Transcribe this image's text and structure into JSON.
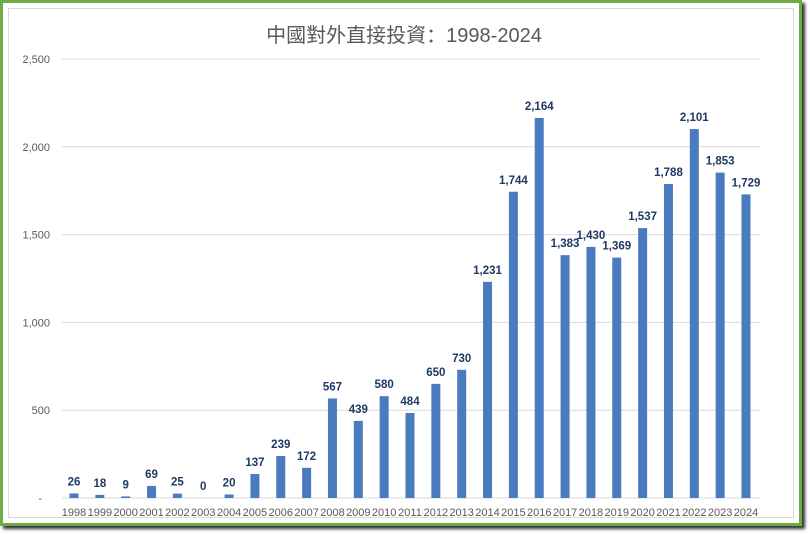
{
  "chart_data": {
    "type": "bar",
    "title": "中國對外直接投資：1998-2024",
    "xlabel": "",
    "ylabel": "",
    "ylim": [
      0,
      2500
    ],
    "yticks": [
      0,
      500,
      1000,
      1500,
      2000,
      2500
    ],
    "ytick_labels": [
      "-",
      "500",
      "1,000",
      "1,500",
      "2,000",
      "2,500"
    ],
    "grid": true,
    "bar_color": "#4a7bbf",
    "categories": [
      "1998",
      "1999",
      "2000",
      "2001",
      "2002",
      "2003",
      "2004",
      "2005",
      "2006",
      "2007",
      "2008",
      "2009",
      "2010",
      "2011",
      "2012",
      "2013",
      "2014",
      "2015",
      "2016",
      "2017",
      "2018",
      "2019",
      "2020",
      "2021",
      "2022",
      "2023",
      "2024"
    ],
    "values": [
      26,
      18,
      9,
      69,
      25,
      0,
      20,
      137,
      239,
      172,
      567,
      439,
      580,
      484,
      650,
      730,
      1231,
      1744,
      2164,
      1383,
      1430,
      1369,
      1537,
      1788,
      2101,
      1853,
      1729
    ],
    "data_labels": [
      "26",
      "18",
      "9",
      "69",
      "25",
      "0",
      "20",
      "137",
      "239",
      "172",
      "567",
      "439",
      "580",
      "484",
      "650",
      "730",
      "1,231",
      "1,744",
      "2,164",
      "1,383",
      "1,430",
      "1,369",
      "1,537",
      "1,788",
      "2,101",
      "1,853",
      "1,729"
    ]
  }
}
